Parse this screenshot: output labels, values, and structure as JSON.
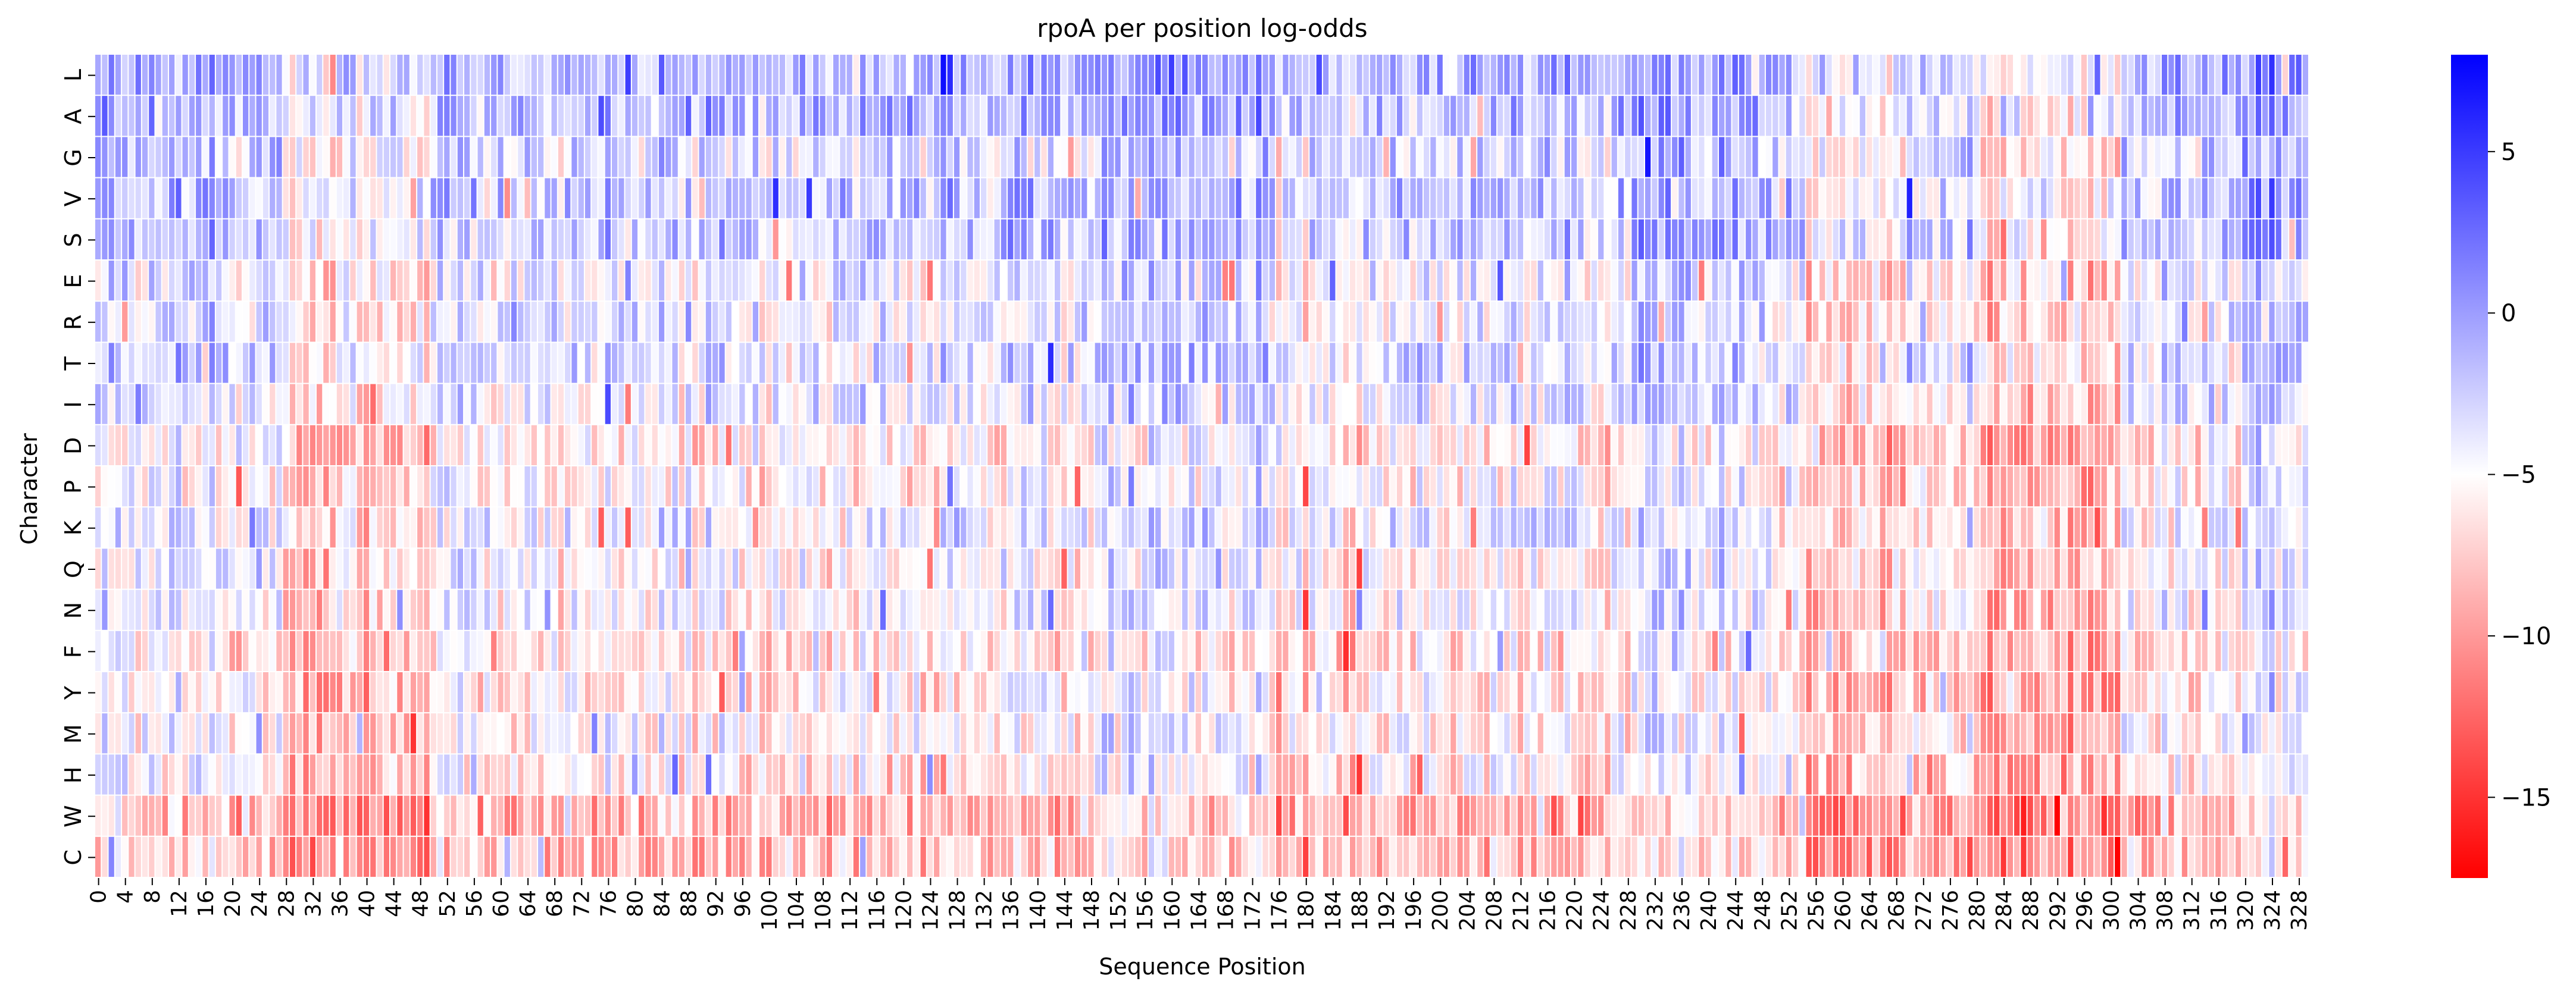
{
  "chart_data": {
    "type": "heatmap",
    "title": "rpoA per position log-odds",
    "xlabel": "Sequence Position",
    "ylabel": "Character",
    "rows": [
      "L",
      "A",
      "G",
      "V",
      "S",
      "E",
      "R",
      "T",
      "I",
      "D",
      "P",
      "K",
      "Q",
      "N",
      "F",
      "Y",
      "M",
      "H",
      "W",
      "C"
    ],
    "n_positions": 330,
    "x_tick_labels": [
      "0",
      "4",
      "8",
      "12",
      "16",
      "20",
      "24",
      "28",
      "32",
      "36",
      "40",
      "44",
      "48",
      "52",
      "56",
      "60",
      "64",
      "68",
      "72",
      "76",
      "80",
      "84",
      "88",
      "92",
      "96",
      "100",
      "104",
      "108",
      "112",
      "116",
      "120",
      "124",
      "128",
      "132",
      "136",
      "140",
      "144",
      "148",
      "152",
      "156",
      "160",
      "164",
      "168",
      "172",
      "176",
      "180",
      "184",
      "188",
      "192",
      "196",
      "200",
      "204",
      "208",
      "212",
      "216",
      "220",
      "224",
      "228",
      "232",
      "236",
      "240",
      "244",
      "248",
      "252",
      "256",
      "260",
      "264",
      "268",
      "272",
      "276",
      "280",
      "284",
      "288",
      "292",
      "296",
      "300",
      "304",
      "308",
      "312",
      "316",
      "320",
      "324",
      "328"
    ],
    "colorbar": {
      "min": -17.5,
      "max": 8,
      "center": -5,
      "cmap": [
        "#ff0000",
        "#ffffff",
        "#0000ff"
      ],
      "ticks": [
        "5",
        "0",
        "−5",
        "−10",
        "−15"
      ],
      "tick_values": [
        5,
        0,
        -5,
        -10,
        -15
      ]
    },
    "row_base_log_odds": {
      "L": -1.0,
      "A": -1.5,
      "G": -3.0,
      "V": -2.0,
      "S": -2.0,
      "E": -4.0,
      "R": -4.0,
      "T": -3.0,
      "I": -4.0,
      "D": -6.0,
      "P": -5.5,
      "K": -4.5,
      "Q": -5.0,
      "N": -5.0,
      "F": -6.5,
      "Y": -6.0,
      "M": -5.5,
      "H": -6.0,
      "W": -8.5,
      "C": -8.0
    },
    "position_region_offsets": [
      {
        "from": 0,
        "to": 20,
        "offset": 1.0
      },
      {
        "from": 28,
        "to": 50,
        "offset": -2.5
      },
      {
        "from": 150,
        "to": 175,
        "offset": 1.5
      },
      {
        "from": 176,
        "to": 190,
        "offset": -1.5
      },
      {
        "from": 230,
        "to": 250,
        "offset": 1.5
      },
      {
        "from": 255,
        "to": 270,
        "offset": -3.0
      },
      {
        "from": 280,
        "to": 302,
        "offset": -3.5
      },
      {
        "from": 320,
        "to": 330,
        "offset": 2.5
      }
    ]
  }
}
